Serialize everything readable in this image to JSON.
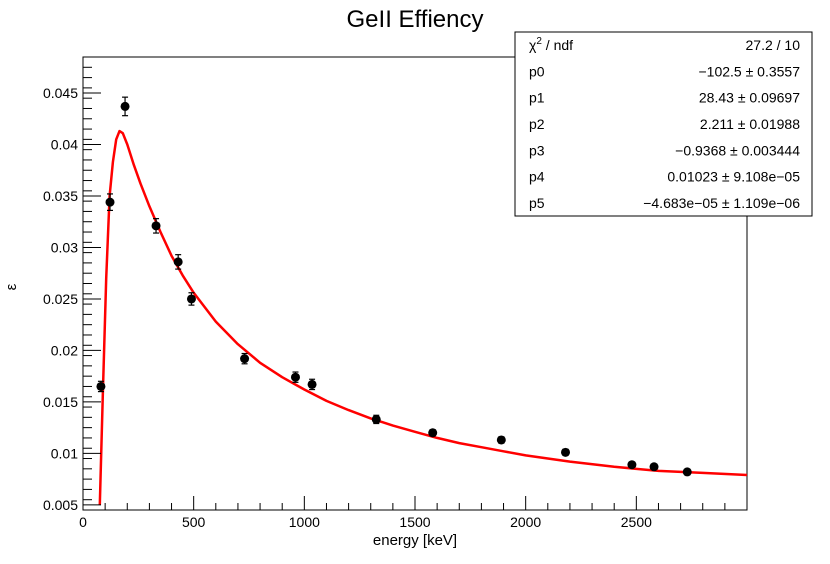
{
  "chart_data": {
    "type": "scatter",
    "title": "GeII Effiency",
    "xlabel": "energy [keV]",
    "ylabel": "ε",
    "xlim": [
      0,
      3000
    ],
    "ylim": [
      0.0045,
      0.0485
    ],
    "x_ticks": [
      0,
      500,
      1000,
      1500,
      2000,
      2500
    ],
    "x_tick_labels": [
      "0",
      "500",
      "1000",
      "1500",
      "2000",
      "2500"
    ],
    "y_ticks": [
      0.005,
      0.01,
      0.015,
      0.02,
      0.025,
      0.03,
      0.035,
      0.04,
      0.045
    ],
    "y_tick_labels": [
      "0.005",
      "0.01",
      "0.015",
      "0.02",
      "0.025",
      "0.03",
      "0.035",
      "0.04",
      "0.045"
    ],
    "points": [
      {
        "x": 81,
        "y": 0.0165,
        "err": 0.0005
      },
      {
        "x": 122,
        "y": 0.0344,
        "err": 0.0008
      },
      {
        "x": 190,
        "y": 0.0437,
        "err": 0.0009
      },
      {
        "x": 330,
        "y": 0.0321,
        "err": 0.0007
      },
      {
        "x": 430,
        "y": 0.0286,
        "err": 0.0007
      },
      {
        "x": 490,
        "y": 0.025,
        "err": 0.0006
      },
      {
        "x": 730,
        "y": 0.0192,
        "err": 0.0005
      },
      {
        "x": 960,
        "y": 0.0174,
        "err": 0.0005
      },
      {
        "x": 1035,
        "y": 0.0167,
        "err": 0.0005
      },
      {
        "x": 1325,
        "y": 0.0133,
        "err": 0.0004
      },
      {
        "x": 1580,
        "y": 0.012,
        "err": 0.0003
      },
      {
        "x": 1890,
        "y": 0.0113,
        "err": 0.0003
      },
      {
        "x": 2180,
        "y": 0.0101,
        "err": 0.0003
      },
      {
        "x": 2480,
        "y": 0.0089,
        "err": 0.0002
      },
      {
        "x": 2580,
        "y": 0.0087,
        "err": 0.0002
      },
      {
        "x": 2730,
        "y": 0.0082,
        "err": 0.0002
      }
    ],
    "fit_curve": {
      "color": "#ff0000",
      "x": [
        76,
        90,
        105,
        120,
        135,
        150,
        165,
        180,
        200,
        230,
        260,
        300,
        350,
        400,
        450,
        500,
        600,
        700,
        800,
        900,
        1000,
        1100,
        1200,
        1300,
        1400,
        1500,
        1600,
        1700,
        1800,
        1900,
        2000,
        2200,
        2400,
        2600,
        2800,
        3000
      ],
      "y": [
        0.005,
        0.016,
        0.027,
        0.035,
        0.0383,
        0.0405,
        0.0413,
        0.0411,
        0.04,
        0.038,
        0.0362,
        0.034,
        0.0315,
        0.0292,
        0.0273,
        0.0256,
        0.0228,
        0.0206,
        0.0188,
        0.0174,
        0.0162,
        0.0151,
        0.0142,
        0.0134,
        0.0127,
        0.0121,
        0.0115,
        0.011,
        0.0106,
        0.0102,
        0.0098,
        0.0092,
        0.0087,
        0.0083,
        0.0081,
        0.0079
      ]
    },
    "marker_color": "#000000",
    "stats_box": {
      "rows": [
        {
          "label_base": "χ",
          "label_sup": "2",
          "label_rest": " / ndf",
          "value": "27.2 / 10"
        },
        {
          "label": "p0",
          "value": "−102.5 ± 0.3557"
        },
        {
          "label": "p1",
          "value": "28.43 ± 0.09697"
        },
        {
          "label": "p2",
          "value": "2.211 ± 0.01988"
        },
        {
          "label": "p3",
          "value": "−0.9368 ± 0.003444"
        },
        {
          "label": "p4",
          "value": "0.01023 ± 9.108e−05"
        },
        {
          "label": "p5",
          "value": "−4.683e−05 ± 1.109e−06"
        }
      ]
    }
  }
}
